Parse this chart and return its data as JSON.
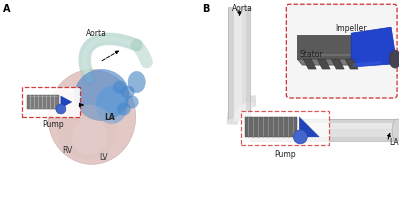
{
  "bg_color": "#ffffff",
  "panel_A_label": "A",
  "panel_B_label": "B",
  "labels": {
    "aorta_A": "Aorta",
    "pump_A": "Pump",
    "LA_A": "LA",
    "RV_A": "RV",
    "LV_A": "LV",
    "aorta_B": "Aorta",
    "pump_B": "Pump",
    "LA_B": "LA",
    "stator_B": "Stator",
    "impeller_B": "Impeller"
  },
  "dashed_box_color": "#cc2222",
  "heart_fill": "#d4a8a0",
  "heart_stroke": "#c08888",
  "aorta_teal": "#a8ccc0",
  "blue_fill": "#5588bb",
  "pump_gray": "#888888",
  "tube_color": "#e8e8e8",
  "stator_color": "#666666",
  "impeller_color": "#2244aa"
}
